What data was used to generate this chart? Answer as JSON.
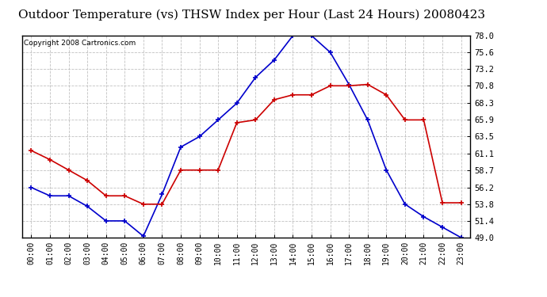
{
  "title": "Outdoor Temperature (vs) THSW Index per Hour (Last 24 Hours) 20080423",
  "copyright": "Copyright 2008 Cartronics.com",
  "hours": [
    "00:00",
    "01:00",
    "02:00",
    "03:00",
    "04:00",
    "05:00",
    "06:00",
    "07:00",
    "08:00",
    "09:00",
    "10:00",
    "11:00",
    "12:00",
    "13:00",
    "14:00",
    "15:00",
    "16:00",
    "17:00",
    "18:00",
    "19:00",
    "20:00",
    "21:00",
    "22:00",
    "23:00"
  ],
  "temp": [
    61.5,
    60.2,
    58.7,
    57.2,
    55.0,
    55.0,
    53.8,
    53.8,
    58.7,
    58.7,
    58.7,
    65.5,
    65.9,
    68.8,
    69.5,
    69.5,
    70.8,
    70.8,
    71.0,
    69.5,
    65.9,
    65.9,
    54.0,
    54.0
  ],
  "thsw": [
    56.2,
    55.0,
    55.0,
    53.5,
    51.4,
    51.4,
    49.2,
    55.2,
    62.0,
    63.5,
    65.9,
    68.3,
    72.0,
    74.5,
    78.0,
    78.0,
    75.6,
    71.0,
    65.9,
    58.7,
    53.8,
    52.0,
    50.5,
    49.0
  ],
  "ylim": [
    49.0,
    78.0
  ],
  "yticks": [
    49.0,
    51.4,
    53.8,
    56.2,
    58.7,
    61.1,
    63.5,
    65.9,
    68.3,
    70.8,
    73.2,
    75.6,
    78.0
  ],
  "temp_color": "#cc0000",
  "thsw_color": "#0000cc",
  "bg_color": "#ffffff",
  "grid_color": "#bbbbbb",
  "title_fontsize": 11,
  "copyright_fontsize": 6.5,
  "tick_fontsize": 7,
  "ytick_fontsize": 7.5
}
